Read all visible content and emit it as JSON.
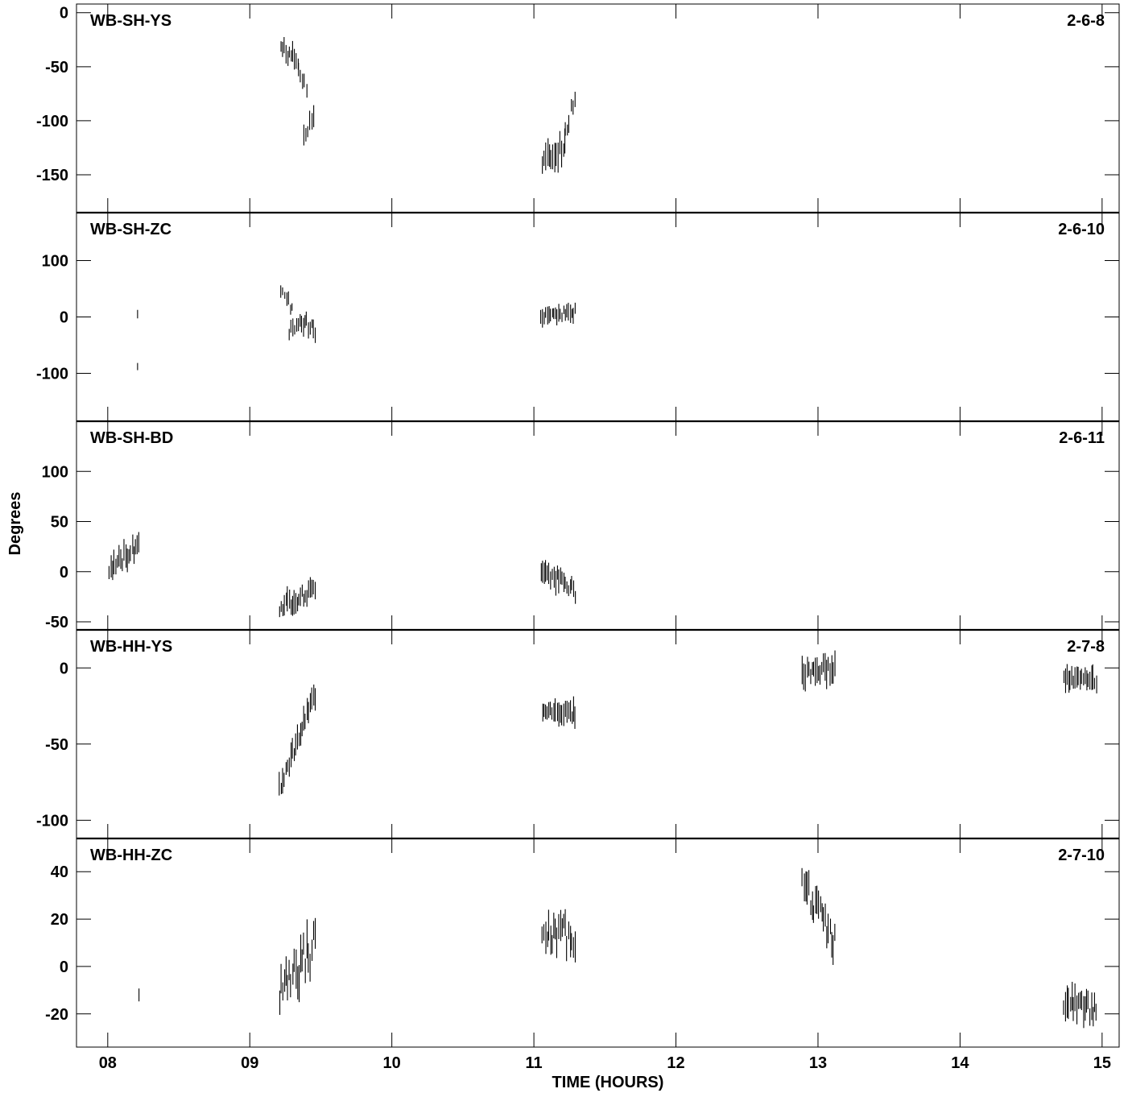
{
  "chart_data": {
    "type": "scatter",
    "marker": "vertical error bars",
    "xlabel": "TIME (HOURS)",
    "ylabel": "Degrees",
    "xlim": [
      7.78,
      15.12
    ],
    "x_ticks": [
      8,
      9,
      10,
      11,
      12,
      13,
      14,
      15
    ],
    "x_tick_labels": [
      "08",
      "09",
      "10",
      "11",
      "12",
      "13",
      "14",
      "15"
    ],
    "grid": false,
    "panels": [
      {
        "label": "WB-SH-YS",
        "id": "2-6-8",
        "ylim": [
          -185,
          8
        ],
        "y_ticks": [
          0,
          -50,
          -100,
          -150
        ],
        "y_tick_labels": [
          "0",
          "-50",
          "-100",
          "-150"
        ],
        "segments": [
          {
            "x0": 9.22,
            "x1": 9.34,
            "y0": -32,
            "y1": -45,
            "noise": 6,
            "err": 7
          },
          {
            "x0": 9.34,
            "x1": 9.4,
            "y0": -52,
            "y1": -72,
            "noise": 5,
            "err": 8
          },
          {
            "x0": 9.38,
            "x1": 9.45,
            "y0": -112,
            "y1": -95,
            "noise": 6,
            "err": 8
          },
          {
            "x0": 11.06,
            "x1": 11.22,
            "y0": -140,
            "y1": -122,
            "noise": 8,
            "err": 10
          },
          {
            "x0": 11.22,
            "x1": 11.29,
            "y0": -112,
            "y1": -75,
            "noise": 6,
            "err": 8
          }
        ]
      },
      {
        "label": "WB-SH-ZC",
        "id": "2-6-10",
        "ylim": [
          -185,
          185
        ],
        "y_ticks": [
          100,
          0,
          -100
        ],
        "y_tick_labels": [
          "100",
          "0",
          "-100"
        ],
        "segments": [
          {
            "x0": 8.21,
            "x1": 8.21,
            "y0": 5,
            "y1": 5,
            "noise": 0,
            "err": 9
          },
          {
            "x0": 8.21,
            "x1": 8.21,
            "y0": -88,
            "y1": -88,
            "noise": 0,
            "err": 9
          },
          {
            "x0": 9.22,
            "x1": 9.3,
            "y0": 55,
            "y1": 10,
            "noise": 10,
            "err": 10
          },
          {
            "x0": 9.28,
            "x1": 9.46,
            "y0": -20,
            "y1": -20,
            "noise": 18,
            "err": 12
          },
          {
            "x0": 11.05,
            "x1": 11.29,
            "y0": 5,
            "y1": 8,
            "noise": 8,
            "err": 12
          }
        ]
      },
      {
        "label": "WB-SH-BD",
        "id": "2-6-11",
        "ylim": [
          -58,
          150
        ],
        "y_ticks": [
          100,
          50,
          0,
          -50
        ],
        "y_tick_labels": [
          "100",
          "50",
          "0",
          "-50"
        ],
        "segments": [
          {
            "x0": 8.01,
            "x1": 8.22,
            "y0": 2,
            "y1": 28,
            "noise": 8,
            "err": 9
          },
          {
            "x0": 9.21,
            "x1": 9.46,
            "y0": -35,
            "y1": -18,
            "noise": 6,
            "err": 9
          },
          {
            "x0": 11.05,
            "x1": 11.29,
            "y0": 5,
            "y1": -20,
            "noise": 7,
            "err": 9
          }
        ]
      },
      {
        "label": "WB-HH-YS",
        "id": "2-7-8",
        "ylim": [
          -112,
          25
        ],
        "y_ticks": [
          0,
          -50,
          -100
        ],
        "y_tick_labels": [
          "0",
          "-50",
          "-100"
        ],
        "segments": [
          {
            "x0": 9.21,
            "x1": 9.46,
            "y0": -78,
            "y1": -17,
            "noise": 4,
            "err": 6
          },
          {
            "x0": 11.06,
            "x1": 11.29,
            "y0": -27,
            "y1": -30,
            "noise": 3,
            "err": 6
          },
          {
            "x0": 12.89,
            "x1": 13.12,
            "y0": -3,
            "y1": 0,
            "noise": 5,
            "err": 7
          },
          {
            "x0": 14.73,
            "x1": 14.96,
            "y0": -7,
            "y1": -8,
            "noise": 3,
            "err": 6
          }
        ]
      },
      {
        "label": "WB-HH-ZC",
        "id": "2-7-10",
        "ylim": [
          -34,
          54
        ],
        "y_ticks": [
          40,
          20,
          0,
          -20
        ],
        "y_tick_labels": [
          "40",
          "20",
          "0",
          "-20"
        ],
        "segments": [
          {
            "x0": 8.22,
            "x1": 8.22,
            "y0": -12,
            "y1": -12,
            "noise": 0,
            "err": 2
          },
          {
            "x0": 9.21,
            "x1": 9.46,
            "y0": -8,
            "y1": 8,
            "noise": 9,
            "err": 6
          },
          {
            "x0": 11.06,
            "x1": 11.29,
            "y0": 12,
            "y1": 14,
            "noise": 6,
            "err": 5
          },
          {
            "x0": 12.89,
            "x1": 13.12,
            "y0": 36,
            "y1": 10,
            "noise": 5,
            "err": 5
          },
          {
            "x0": 14.73,
            "x1": 14.96,
            "y0": -15,
            "y1": -18,
            "noise": 4,
            "err": 5
          }
        ]
      }
    ]
  }
}
